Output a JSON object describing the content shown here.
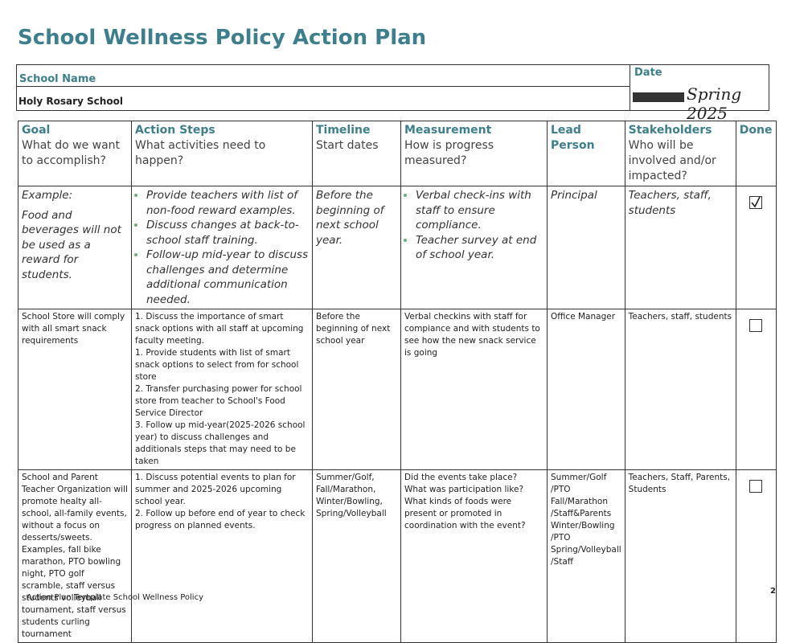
{
  "title": "School Wellness Policy Action Plan",
  "header": {
    "school_name_label": "School Name",
    "school_name": "Holy Rosary School",
    "date_label": "Date",
    "date": "Spring 2025"
  },
  "table": {
    "columns": [
      {
        "title": "Goal",
        "subtitle": "What do we want to accomplish?"
      },
      {
        "title": "Action Steps",
        "subtitle": "What activities need to happen?"
      },
      {
        "title": "Timeline",
        "subtitle": "Start dates"
      },
      {
        "title": "Measurement",
        "subtitle": "How is progress measured?"
      },
      {
        "title": "Lead Person",
        "subtitle": null
      },
      {
        "title": "Stakeholders",
        "subtitle": "Who will be involved and/or impacted?"
      },
      {
        "title": "Done",
        "subtitle": null
      }
    ],
    "example": {
      "label": "Example:",
      "goal": "Food and beverages will not be used as a reward for students.",
      "action_steps": [
        "Provide teachers with list of non-food reward examples.",
        "Discuss changes at back-to-school staff training.",
        "Follow-up mid-year to discuss challenges and determine additional communication needed."
      ],
      "timeline": "Before the beginning of next school year.",
      "measurement": [
        "Verbal check-ins with staff to ensure compliance.",
        "Teacher survey at end of school year."
      ],
      "lead": "Principal",
      "stakeholders": "Teachers, staff, students",
      "done": true
    },
    "rows": [
      {
        "goal": [
          "School Store will comply with all smart snack requirements"
        ],
        "action_steps": [
          "1. Discuss the importance of smart snack options with all staff at upcoming faculty meeting.",
          "1. Provide students with list of smart snack options to select from for school store",
          "2. Transfer purchasing power for school store from teacher to School's Food Service Director",
          "3. Follow up mid-year(2025-2026 school year) to discuss challenges and additionals steps that may need to be taken"
        ],
        "timeline": [
          "Before the beginning of next school year"
        ],
        "measurement": [
          "Verbal checkins with staff for compiance and with students to see how the new snack service is going"
        ],
        "lead": [
          "Office Manager"
        ],
        "stakeholders": [
          "Teachers, staff, students"
        ],
        "done": false
      },
      {
        "goal": [
          "School and Parent Teacher Organization will promote healty all-school, all-family events, without a focus on desserts/sweets. Examples, fall bike marathon, PTO bowling night, PTO golf scramble, staff versus students volleyball tournament, staff versus students curling tournament"
        ],
        "action_steps": [
          "1. Discuss potential events to plan for summer and 2025-2026 upcoming school year.",
          "2. Follow up before end of year to check progress on planned events."
        ],
        "timeline": [
          "Summer/Golf,",
          "Fall/Marathon,",
          "Winter/Bowling,",
          "Spring/Volleyball"
        ],
        "measurement": [
          "Did the events take place?",
          "What was participation like?",
          "What kinds of foods were present or promoted in coordination with the event?"
        ],
        "lead": [
          "Summer/Golf /PTO",
          "Fall/Marathon /Staff&Parents",
          "Winter/Bowling /PTO",
          "Spring/Volleyball /Staff"
        ],
        "stakeholders": [
          "Teachers, Staff, Parents, Students"
        ],
        "done": false
      }
    ]
  },
  "footer": {
    "text": "Action Plan Template School Wellness Policy",
    "page_number": "2"
  }
}
